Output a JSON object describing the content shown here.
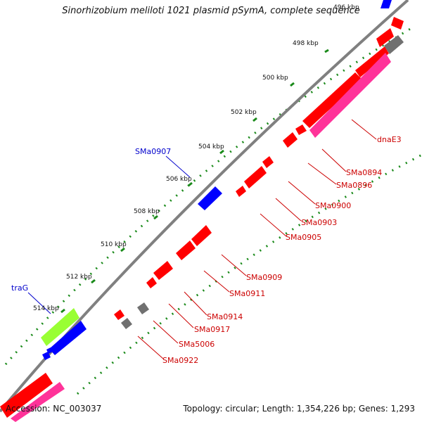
{
  "title": "Sinorhizobium meliloti 1021 plasmid pSymA, complete sequence",
  "accession_text": "Accession: NC_003037",
  "summary_text": "Topology: circular; Length: 1,354,226 bp; Genes: 1,293",
  "colors": {
    "backbone": "#808080",
    "gene_red": "#ff0000",
    "gene_blue": "#0000ff",
    "gene_pink": "#ff3399",
    "gene_gray": "#707070",
    "gene_green": "#99ff33",
    "tick_green": "#1a8a1a",
    "label_red": "#cc0000",
    "label_blue": "#0000cc"
  },
  "kbp_labels": [
    "496 kbp",
    "498 kbp",
    "500 kbp",
    "502 kbp",
    "504 kbp",
    "506 kbp",
    "508 kbp",
    "510 kbp",
    "512 kbp",
    "514 kbp"
  ],
  "gene_labels": [
    {
      "text": "dnaE3",
      "color": "red"
    },
    {
      "text": "SMa0894",
      "color": "red"
    },
    {
      "text": "SMa0896",
      "color": "red"
    },
    {
      "text": "SMa0900",
      "color": "red"
    },
    {
      "text": "SMa0903",
      "color": "red"
    },
    {
      "text": "SMa0905",
      "color": "red"
    },
    {
      "text": "SMa0909",
      "color": "red"
    },
    {
      "text": "SMa0911",
      "color": "red"
    },
    {
      "text": "SMa0914",
      "color": "red"
    },
    {
      "text": "SMa0917",
      "color": "red"
    },
    {
      "text": "SMa5006",
      "color": "red"
    },
    {
      "text": "SMa0922",
      "color": "red"
    },
    {
      "text": "SMa0907",
      "color": "blue"
    },
    {
      "text": "traG",
      "color": "blue"
    }
  ]
}
